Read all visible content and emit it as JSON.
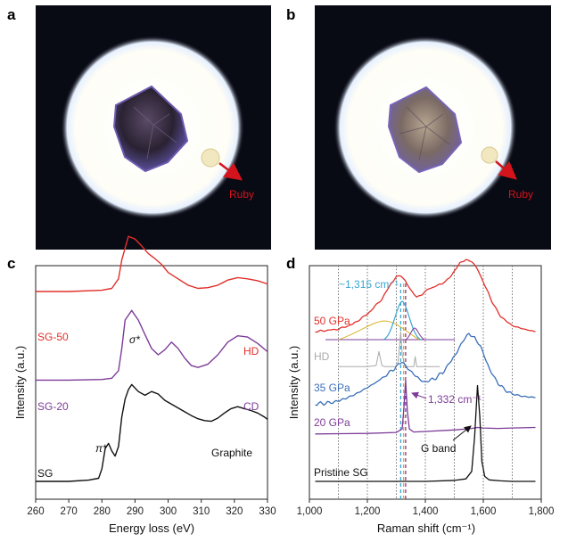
{
  "panels": {
    "a": {
      "label": "a",
      "ruby_label": "Ruby"
    },
    "b": {
      "label": "b",
      "ruby_label": "Ruby"
    }
  },
  "colors": {
    "sg50": "#e0302b",
    "sg20": "#7d3c98",
    "sg": "#111111",
    "p50": "#e0302b",
    "p35": "#3a6fb8",
    "p20": "#7d3c98",
    "pristine": "#111111",
    "hd": "#aaaaaa",
    "ruby": "#d4141c",
    "peak_blue": "#3aa6d0",
    "peak_orange": "#f0a040"
  },
  "chart_data": [
    {
      "panel": "c",
      "type": "line",
      "xlabel": "Energy loss (eV)",
      "ylabel": "Intensity (a.u.)",
      "xlim": [
        260,
        330
      ],
      "xticks": [
        260,
        270,
        280,
        290,
        300,
        310,
        320,
        330
      ],
      "series": [
        {
          "name": "SG-50",
          "right_label": "HD",
          "x": [
            260,
            270,
            280,
            283,
            285,
            286,
            288,
            290,
            292,
            294,
            296,
            298,
            300,
            303,
            306,
            309,
            312,
            315,
            318,
            321,
            324,
            327,
            330
          ],
          "y": [
            3.0,
            3.0,
            3.02,
            3.05,
            3.2,
            3.5,
            3.87,
            3.83,
            3.72,
            3.6,
            3.52,
            3.43,
            3.3,
            3.2,
            3.1,
            3.05,
            3.06,
            3.1,
            3.18,
            3.22,
            3.2,
            3.17,
            3.12
          ]
        },
        {
          "name": "SG-20",
          "right_label": "CD",
          "x": [
            260,
            270,
            280,
            283,
            285,
            286,
            287,
            289,
            291,
            293,
            295,
            297,
            299,
            301,
            303,
            305,
            307,
            309,
            312,
            315,
            318,
            321,
            324,
            327,
            330
          ],
          "y": [
            1.6,
            1.6,
            1.61,
            1.63,
            1.75,
            2.1,
            2.55,
            2.7,
            2.55,
            2.32,
            2.1,
            2.0,
            2.08,
            2.2,
            2.1,
            1.95,
            1.83,
            1.8,
            1.85,
            2.0,
            2.2,
            2.3,
            2.28,
            2.18,
            2.05
          ]
        },
        {
          "name": "SG",
          "right_label": "Graphite",
          "x": [
            260,
            270,
            276,
            279,
            280,
            281,
            282,
            283,
            284,
            285,
            286,
            287,
            288,
            289,
            291,
            293,
            295,
            297,
            299,
            301,
            303,
            305,
            307,
            309,
            311,
            313,
            315,
            317,
            319,
            321,
            323,
            325,
            327,
            329,
            330
          ],
          "y": [
            0.0,
            0.0,
            0.02,
            0.05,
            0.2,
            0.52,
            0.6,
            0.48,
            0.4,
            0.55,
            1.02,
            1.3,
            1.45,
            1.53,
            1.42,
            1.36,
            1.42,
            1.38,
            1.28,
            1.22,
            1.16,
            1.1,
            1.04,
            0.99,
            0.96,
            0.95,
            1.0,
            1.08,
            1.15,
            1.18,
            1.15,
            1.12,
            1.08,
            1.02,
            0.98
          ]
        }
      ],
      "annotations": [
        {
          "text": "σ*",
          "x": 290
        },
        {
          "text": "π*",
          "x": 282
        }
      ]
    },
    {
      "panel": "d",
      "type": "line",
      "xlabel": "Raman shift (cm⁻¹)",
      "ylabel": "Intensity (a.u.)",
      "xlim": [
        1000,
        1800
      ],
      "xticks": [
        1000,
        1200,
        1400,
        1600,
        1800
      ],
      "xticklabels": [
        "1,000",
        "1,200",
        "1,400",
        "1,600",
        "1,800"
      ],
      "dotted_lines": [
        1100,
        1200,
        1300,
        1400,
        1500,
        1600,
        1700
      ],
      "marker_lines": [
        {
          "x": 1315,
          "color": "#3aa6d0"
        },
        {
          "x": 1325,
          "color": "#f0a040"
        },
        {
          "x": 1332,
          "color": "#7d3c98"
        }
      ],
      "series": [
        {
          "name": "50 GPa",
          "x": [
            1020,
            1100,
            1150,
            1200,
            1250,
            1280,
            1300,
            1315,
            1330,
            1350,
            1370,
            1390,
            1410,
            1440,
            1470,
            1500,
            1520,
            1540,
            1560,
            1580,
            1600,
            1630,
            1660,
            1700,
            1740,
            1780
          ],
          "y": [
            3.0,
            3.05,
            3.15,
            3.35,
            3.65,
            3.95,
            4.1,
            4.12,
            4.02,
            3.82,
            3.7,
            3.75,
            3.85,
            3.92,
            4.0,
            4.2,
            4.38,
            4.45,
            4.4,
            4.25,
            4.0,
            3.6,
            3.3,
            3.12,
            3.05,
            3.0
          ]
        },
        {
          "name": "HD",
          "x": [
            1100,
            1200,
            1230,
            1240,
            1250,
            1260,
            1300,
            1305,
            1310,
            1315,
            1320,
            1330,
            1360,
            1365,
            1370,
            1380,
            1450
          ],
          "y": [
            2.3,
            2.3,
            2.32,
            2.6,
            2.32,
            2.3,
            2.3,
            2.35,
            2.65,
            3.0,
            2.55,
            2.3,
            2.3,
            2.5,
            2.3,
            2.3,
            2.3
          ]
        },
        {
          "name": "35 GPa",
          "x": [
            1020,
            1080,
            1120,
            1160,
            1200,
            1240,
            1270,
            1300,
            1320,
            1340,
            1360,
            1380,
            1400,
            1430,
            1460,
            1490,
            1510,
            1530,
            1550,
            1570,
            1590,
            1610,
            1640,
            1670,
            1700,
            1740,
            1780
          ],
          "y": [
            1.55,
            1.58,
            1.65,
            1.75,
            1.88,
            2.02,
            2.15,
            2.3,
            2.38,
            2.28,
            2.15,
            2.02,
            2.0,
            2.05,
            2.18,
            2.42,
            2.62,
            2.8,
            2.95,
            2.9,
            2.7,
            2.4,
            2.05,
            1.85,
            1.75,
            1.7,
            1.68
          ]
        },
        {
          "name": "20 GPa",
          "peak_label": "1,332 cm⁻¹",
          "x": [
            1020,
            1200,
            1300,
            1320,
            1326,
            1332,
            1338,
            1345,
            1360,
            1400,
            1500,
            1560,
            1580,
            1600,
            1650,
            1700,
            1780
          ],
          "y": [
            0.95,
            0.96,
            0.98,
            1.05,
            1.45,
            2.02,
            1.4,
            1.05,
            0.99,
            1.0,
            1.03,
            1.06,
            1.08,
            1.07,
            1.06,
            1.07,
            1.08
          ]
        },
        {
          "name": "Pristine SG",
          "peak_label": "G band",
          "x": [
            1020,
            1200,
            1400,
            1500,
            1540,
            1560,
            1570,
            1580,
            1588,
            1595,
            1605,
            1620,
            1660,
            1700,
            1780
          ],
          "y": [
            0.0,
            0.0,
            0.0,
            0.02,
            0.05,
            0.2,
            0.9,
            1.92,
            1.3,
            0.4,
            0.1,
            0.03,
            0.01,
            0.0,
            0.0
          ]
        }
      ],
      "annotations": [
        {
          "text": "~1,315 cm⁻¹",
          "x": 1315
        }
      ]
    }
  ]
}
